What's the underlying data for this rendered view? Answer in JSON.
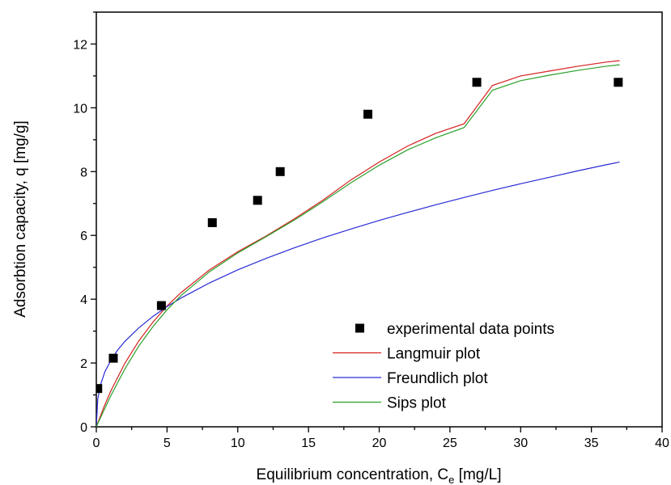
{
  "chart_data": {
    "type": "scatter",
    "xlabel": "Equilibrium concentration, C",
    "xlabel_sub": "e",
    "xlabel_unit": " [mg/L]",
    "ylabel": "Adsorbtion capacity, q [mg/g]",
    "xlim": [
      0,
      40
    ],
    "ylim": [
      0,
      13
    ],
    "x_ticks": [
      "0",
      "5",
      "10",
      "15",
      "20",
      "25",
      "30",
      "35",
      "40"
    ],
    "y_ticks": [
      "0",
      "2",
      "4",
      "6",
      "8",
      "10",
      "12"
    ],
    "grid": false,
    "legend_position": "bottom-right",
    "series": [
      {
        "name": "experimental data points",
        "kind": "markers",
        "color": "#000000",
        "x": [
          0.1,
          1.2,
          4.6,
          8.2,
          11.4,
          13.0,
          19.2,
          26.9,
          36.9
        ],
        "y": [
          1.2,
          2.15,
          3.8,
          6.4,
          7.1,
          8.0,
          9.8,
          10.8,
          10.8
        ]
      },
      {
        "name": "Langmuir plot",
        "kind": "line",
        "color": "#d62020",
        "x": [
          0,
          0.5,
          1,
          2,
          3,
          4,
          5,
          6,
          8,
          10,
          12,
          14,
          16,
          18,
          20,
          22,
          24,
          26,
          28,
          30,
          32,
          34,
          36,
          37
        ],
        "y": [
          0,
          0.58,
          1.1,
          1.98,
          2.69,
          3.28,
          3.79,
          4.21,
          4.92,
          5.49,
          5.98,
          6.52,
          7.1,
          7.74,
          8.3,
          8.8,
          9.2,
          9.5,
          10.7,
          11.0,
          11.15,
          11.3,
          11.43,
          11.48
        ]
      },
      {
        "name": "Freundlich plot",
        "kind": "line",
        "color": "#2a2ad6",
        "x": [
          0,
          0.1,
          0.3,
          0.6,
          1,
          1.5,
          2,
          3,
          4,
          5,
          6,
          8,
          10,
          12,
          14,
          16,
          18,
          20,
          22,
          24,
          26,
          28,
          30,
          32,
          34,
          36,
          37
        ],
        "y": [
          0,
          0.86,
          1.32,
          1.72,
          2.06,
          2.4,
          2.67,
          3.1,
          3.46,
          3.77,
          4.04,
          4.51,
          4.92,
          5.28,
          5.61,
          5.92,
          6.2,
          6.47,
          6.72,
          6.96,
          7.19,
          7.41,
          7.62,
          7.82,
          8.02,
          8.21,
          8.3
        ]
      },
      {
        "name": "Sips plot",
        "kind": "line",
        "color": "#2aa02a",
        "x": [
          0,
          0.5,
          1,
          2,
          3,
          4,
          5,
          6,
          8,
          10,
          12,
          14,
          16,
          18,
          20,
          22,
          24,
          26,
          28,
          30,
          32,
          34,
          36,
          37
        ],
        "y": [
          0,
          0.48,
          0.95,
          1.8,
          2.53,
          3.14,
          3.67,
          4.12,
          4.86,
          5.45,
          5.96,
          6.48,
          7.05,
          7.65,
          8.2,
          8.68,
          9.06,
          9.38,
          10.55,
          10.85,
          11.02,
          11.17,
          11.3,
          11.35
        ]
      }
    ]
  }
}
